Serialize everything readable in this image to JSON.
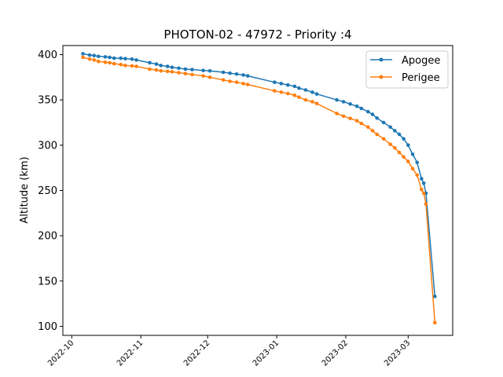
{
  "chart_data": {
    "type": "line",
    "title": "PHOTON-02 - 47972 - Priority :4",
    "xlabel": "",
    "ylabel": "Altitude (km)",
    "xlim": [
      "2022-09-27",
      "2023-03-21"
    ],
    "ylim": [
      90,
      410
    ],
    "x_ticks": [
      "2022-10-01",
      "2022-11-01",
      "2022-12-01",
      "2023-01-01",
      "2023-02-01",
      "2023-03-01"
    ],
    "x_tick_labels": [
      "2022-10",
      "2022-11",
      "2022-12",
      "2023-01",
      "2023-02",
      "2023-03"
    ],
    "y_ticks": [
      100,
      150,
      200,
      250,
      300,
      350,
      400
    ],
    "y_tick_labels": [
      "100",
      "150",
      "200",
      "250",
      "300",
      "350",
      "400"
    ],
    "grid": false,
    "legend": "top-right",
    "series": [
      {
        "name": "Apogee",
        "color": "#1f77b4",
        "points": [
          [
            "2022-10-06",
            401
          ],
          [
            "2022-10-09",
            399.5
          ],
          [
            "2022-10-11",
            399
          ],
          [
            "2022-10-13",
            398
          ],
          [
            "2022-10-16",
            397.5
          ],
          [
            "2022-10-18",
            397
          ],
          [
            "2022-10-20",
            396
          ],
          [
            "2022-10-23",
            396
          ],
          [
            "2022-10-25",
            395.5
          ],
          [
            "2022-10-28",
            395
          ],
          [
            "2022-10-30",
            394
          ],
          [
            "2022-11-05",
            391
          ],
          [
            "2022-11-08",
            389.5
          ],
          [
            "2022-11-10",
            388
          ],
          [
            "2022-11-13",
            387
          ],
          [
            "2022-11-15",
            386
          ],
          [
            "2022-11-18",
            385
          ],
          [
            "2022-11-21",
            384
          ],
          [
            "2022-11-24",
            383.5
          ],
          [
            "2022-11-29",
            382.5
          ],
          [
            "2022-12-02",
            382
          ],
          [
            "2022-12-08",
            380.5
          ],
          [
            "2022-12-11",
            379.5
          ],
          [
            "2022-12-14",
            378.5
          ],
          [
            "2022-12-17",
            377.5
          ],
          [
            "2022-12-19",
            376.5
          ],
          [
            "2022-12-31",
            369.5
          ],
          [
            "2023-01-03",
            368
          ],
          [
            "2023-01-06",
            366.5
          ],
          [
            "2023-01-09",
            365
          ],
          [
            "2023-01-11",
            363
          ],
          [
            "2023-01-14",
            361
          ],
          [
            "2023-01-17",
            358.5
          ],
          [
            "2023-01-19",
            356.5
          ],
          [
            "2023-01-28",
            350
          ],
          [
            "2023-01-31",
            348
          ],
          [
            "2023-02-03",
            345.5
          ],
          [
            "2023-02-06",
            343
          ],
          [
            "2023-02-08",
            340.5
          ],
          [
            "2023-02-11",
            337
          ],
          [
            "2023-02-13",
            334
          ],
          [
            "2023-02-15",
            330
          ],
          [
            "2023-02-18",
            325
          ],
          [
            "2023-02-21",
            320
          ],
          [
            "2023-02-23",
            316
          ],
          [
            "2023-02-25",
            312
          ],
          [
            "2023-02-27",
            307
          ],
          [
            "2023-03-01",
            300
          ],
          [
            "2023-03-03",
            290
          ],
          [
            "2023-03-05",
            281
          ],
          [
            "2023-03-07",
            263
          ],
          [
            "2023-03-08",
            258
          ],
          [
            "2023-03-09",
            247
          ],
          [
            "2023-03-13",
            133
          ]
        ]
      },
      {
        "name": "Perigee",
        "color": "#ff7f0e",
        "points": [
          [
            "2022-10-06",
            397
          ],
          [
            "2022-10-09",
            395
          ],
          [
            "2022-10-11",
            394
          ],
          [
            "2022-10-13",
            392.5
          ],
          [
            "2022-10-16",
            391.5
          ],
          [
            "2022-10-18",
            391
          ],
          [
            "2022-10-20",
            390
          ],
          [
            "2022-10-23",
            389
          ],
          [
            "2022-10-25",
            388
          ],
          [
            "2022-10-28",
            387.5
          ],
          [
            "2022-10-30",
            387
          ],
          [
            "2022-11-05",
            384
          ],
          [
            "2022-11-08",
            383
          ],
          [
            "2022-11-10",
            382
          ],
          [
            "2022-11-13",
            381.5
          ],
          [
            "2022-11-15",
            381
          ],
          [
            "2022-11-18",
            380
          ],
          [
            "2022-11-21",
            379
          ],
          [
            "2022-11-24",
            378
          ],
          [
            "2022-11-29",
            376.5
          ],
          [
            "2022-12-02",
            375
          ],
          [
            "2022-12-08",
            372
          ],
          [
            "2022-12-11",
            370.5
          ],
          [
            "2022-12-14",
            369.5
          ],
          [
            "2022-12-17",
            368
          ],
          [
            "2022-12-19",
            367
          ],
          [
            "2022-12-31",
            360
          ],
          [
            "2023-01-03",
            358.5
          ],
          [
            "2023-01-06",
            357
          ],
          [
            "2023-01-09",
            355
          ],
          [
            "2023-01-11",
            353
          ],
          [
            "2023-01-14",
            350
          ],
          [
            "2023-01-17",
            348
          ],
          [
            "2023-01-19",
            346
          ],
          [
            "2023-01-28",
            335
          ],
          [
            "2023-01-31",
            332
          ],
          [
            "2023-02-03",
            329.5
          ],
          [
            "2023-02-06",
            327
          ],
          [
            "2023-02-08",
            324
          ],
          [
            "2023-02-11",
            320
          ],
          [
            "2023-02-13",
            316
          ],
          [
            "2023-02-15",
            312
          ],
          [
            "2023-02-18",
            307
          ],
          [
            "2023-02-21",
            301
          ],
          [
            "2023-02-23",
            297
          ],
          [
            "2023-02-25",
            292
          ],
          [
            "2023-02-27",
            287
          ],
          [
            "2023-03-01",
            282
          ],
          [
            "2023-03-03",
            274
          ],
          [
            "2023-03-05",
            267
          ],
          [
            "2023-03-07",
            251
          ],
          [
            "2023-03-08",
            247
          ],
          [
            "2023-03-09",
            235
          ],
          [
            "2023-03-13",
            104
          ]
        ]
      }
    ]
  }
}
